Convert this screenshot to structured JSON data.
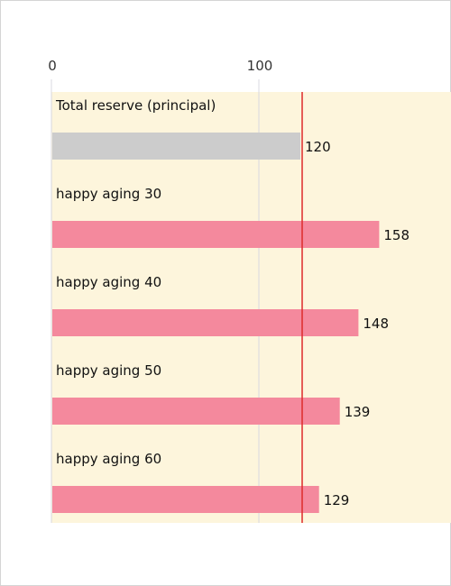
{
  "chart_data": {
    "type": "bar",
    "orientation": "horizontal",
    "categories": [
      "Total reserve (principal)",
      "happy aging 30",
      "happy aging 40",
      "happy aging 50",
      "happy aging 60"
    ],
    "values": [
      120,
      158,
      148,
      139,
      129
    ],
    "bar_colors": [
      "#cccccc",
      "#f4899d",
      "#f4899d",
      "#f4899d",
      "#f4899d"
    ],
    "x_ticks": [
      0,
      100
    ],
    "xlim": [
      0,
      200
    ],
    "reference_line": {
      "value": 120,
      "color": "#dd2b2b"
    },
    "plot_background": "#fdf5dc",
    "grid_color": "#d8d8e0",
    "value_labels": true
  }
}
